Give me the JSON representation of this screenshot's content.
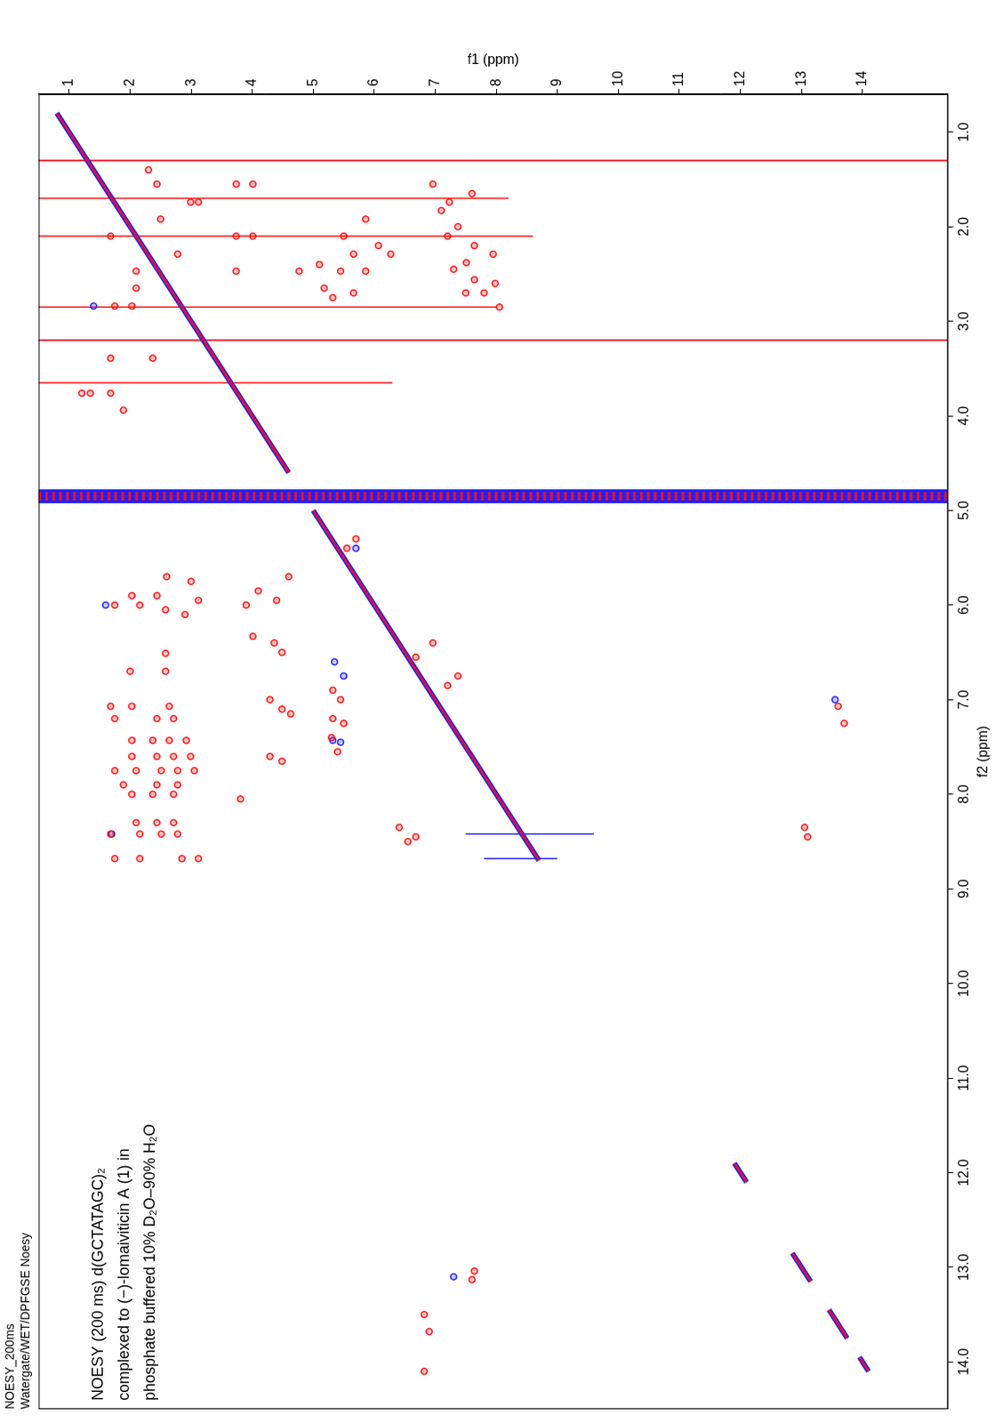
{
  "chart_data": {
    "type": "scatter",
    "title": "NOESY_200ms",
    "subtitle": "Watergate/WET/DPFGSE Noesy",
    "annotations": [
      "NOESY (200 ms) d(GCTATAGC)₂",
      "complexed to (−)-lomaiviticin A (1) in",
      "phosphate buffered 10% D₂O–90% H₂O"
    ],
    "x_label": "f2 (ppm)",
    "y_label": "f1 (ppm)",
    "xlim": [
      14.5,
      0.6
    ],
    "xticks": [
      {
        "value": 14,
        "label": "14.0"
      },
      {
        "value": 13,
        "label": "13.0"
      },
      {
        "value": 12,
        "label": "12.0"
      },
      {
        "value": 11,
        "label": "11.0"
      },
      {
        "value": 10,
        "label": "10.0"
      },
      {
        "value": 9,
        "label": "9.0"
      },
      {
        "value": 8,
        "label": "8.0"
      },
      {
        "value": 7,
        "label": "7.0"
      },
      {
        "value": 6,
        "label": "6.0"
      },
      {
        "value": 5,
        "label": "5.0"
      },
      {
        "value": 4,
        "label": "4.0"
      },
      {
        "value": 3,
        "label": "3.0"
      },
      {
        "value": 2,
        "label": "2.0"
      },
      {
        "value": 1,
        "label": "1.0"
      }
    ],
    "ylim": [
      15.4,
      0.5
    ],
    "yticks": [
      1,
      2,
      3,
      4,
      5,
      6,
      7,
      8,
      9,
      10,
      11,
      12,
      13,
      14
    ],
    "grid": false,
    "series": [
      {
        "type": "line",
        "line_style": "band",
        "color": "#2020ff",
        "x": [
          4.85,
          4.85
        ],
        "y": [
          0.5,
          15.4
        ]
      },
      {
        "type": "line",
        "line_style": "dashed",
        "color": "#ff1010",
        "x": [
          4.85,
          4.85
        ],
        "y": [
          0.5,
          15.4
        ]
      },
      {
        "type": "line",
        "line_style": "thin",
        "color": "#2020ff",
        "x": [
          1.3,
          1.3,
          null,
          3.2,
          3.2,
          null,
          8.42,
          8.42,
          null,
          8.68,
          8.68
        ],
        "y": [
          0.5,
          15.4,
          null,
          0.5,
          15.4,
          null,
          7.5,
          9.6,
          null,
          7.8,
          9.0
        ]
      },
      {
        "type": "line",
        "line_style": "thin",
        "color": "#ff1010",
        "x": [
          1.3,
          1.3,
          null,
          3.2,
          3.2,
          null,
          1.7,
          1.7,
          null,
          2.1,
          2.1,
          null,
          2.85,
          2.85,
          null,
          3.65,
          3.65
        ],
        "y": [
          0.5,
          15.4,
          null,
          0.5,
          15.4,
          null,
          0.5,
          8.2,
          null,
          0.5,
          8.6,
          null,
          0.5,
          8.0,
          null,
          0.5,
          6.3
        ]
      },
      {
        "type": "line",
        "line_style": "thick",
        "color": "#2020ff",
        "x": [
          0.8,
          4.6,
          null,
          5.0,
          8.7,
          null,
          11.9,
          12.1,
          null,
          12.85,
          13.15,
          null,
          13.45,
          13.75,
          null,
          13.95,
          14.1
        ],
        "y": [
          0.8,
          4.6,
          null,
          5.0,
          8.7,
          null,
          11.9,
          12.1,
          null,
          12.85,
          13.15,
          null,
          13.45,
          13.75,
          null,
          13.95,
          14.1
        ]
      },
      {
        "type": "line",
        "line_style": "solid",
        "color": "#ff1010",
        "x": [
          0.8,
          4.6,
          null,
          5.0,
          8.7,
          null,
          11.9,
          12.1,
          null,
          12.85,
          13.15,
          null,
          13.45,
          13.75,
          null,
          13.95,
          14.1
        ],
        "y": [
          0.8,
          4.6,
          null,
          5.0,
          8.7,
          null,
          11.9,
          12.1,
          null,
          12.85,
          13.15,
          null,
          13.45,
          13.75,
          null,
          13.95,
          14.1
        ]
      },
      {
        "type": "scatter",
        "marker": "circle",
        "color": "#2020ff",
        "x": [
          7.43,
          7.45,
          6.0,
          8.42,
          5.4,
          2.84,
          13.1,
          7.0,
          6.6,
          6.75
        ],
        "y": [
          5.32,
          5.45,
          1.6,
          1.7,
          5.7,
          1.4,
          7.3,
          13.55,
          5.35,
          5.5
        ]
      },
      {
        "type": "scatter",
        "marker": "circle",
        "color": "#ff1010",
        "x": [
          6.51,
          6.7,
          6.7,
          7.07,
          7.07,
          7.07,
          7.2,
          7.2,
          7.2,
          7.43,
          7.43,
          7.43,
          7.43,
          7.6,
          7.6,
          7.6,
          7.6,
          7.75,
          7.75,
          7.75,
          7.75,
          7.75,
          7.9,
          7.9,
          7.9,
          8.0,
          8.0,
          8.0,
          8.3,
          8.3,
          8.3,
          8.42,
          8.42,
          8.42,
          8.42,
          8.68,
          8.68,
          8.68,
          8.68,
          6.33,
          6.4,
          6.5,
          7.0,
          7.1,
          7.15,
          7.6,
          7.65,
          8.05,
          6.9,
          7.0,
          7.2,
          7.25,
          7.4,
          7.55,
          6.4,
          6.55,
          6.75,
          6.85,
          8.35,
          8.5,
          8.45,
          13.5,
          13.68,
          14.1,
          13.04,
          13.13,
          7.07,
          7.25,
          8.35,
          8.45,
          1.55,
          1.55,
          1.55,
          1.4,
          1.74,
          1.74,
          2.1,
          2.1,
          2.1,
          2.29,
          2.47,
          2.47,
          2.84,
          2.84,
          3.39,
          3.39,
          3.76,
          3.76,
          3.76,
          3.94,
          1.92,
          2.65,
          1.92,
          2.2,
          2.29,
          2.47,
          2.65,
          2.7,
          2.47,
          2.29,
          2.47,
          2.75,
          2.1,
          2.4,
          1.55,
          1.74,
          1.83,
          2.0,
          2.2,
          2.29,
          2.38,
          2.56,
          2.6,
          2.7,
          2.85,
          2.1,
          1.65,
          2.45,
          2.7,
          5.9,
          5.9,
          6.0,
          6.0,
          6.05,
          6.1,
          5.7,
          5.75,
          5.95,
          5.85,
          6.0,
          5.95,
          5.7,
          5.3,
          5.4
        ],
        "y": [
          2.58,
          2.0,
          2.58,
          1.68,
          2.03,
          2.64,
          1.75,
          2.44,
          2.71,
          2.03,
          2.37,
          2.64,
          2.92,
          2.03,
          2.44,
          2.71,
          2.99,
          1.75,
          2.1,
          2.51,
          2.78,
          3.05,
          1.89,
          2.44,
          2.78,
          2.03,
          2.37,
          2.71,
          2.1,
          2.44,
          2.71,
          1.68,
          2.16,
          2.51,
          2.78,
          1.75,
          2.16,
          2.85,
          3.12,
          4.01,
          4.36,
          4.49,
          4.29,
          4.49,
          4.63,
          4.29,
          4.49,
          3.81,
          5.32,
          5.45,
          5.32,
          5.5,
          5.3,
          5.4,
          6.96,
          6.68,
          7.37,
          7.2,
          6.41,
          6.55,
          6.68,
          6.82,
          6.9,
          6.82,
          7.64,
          7.6,
          13.6,
          13.7,
          13.05,
          13.1,
          2.44,
          3.74,
          4.01,
          2.3,
          2.99,
          3.12,
          1.68,
          3.74,
          4.01,
          2.78,
          2.1,
          3.74,
          1.75,
          2.03,
          1.68,
          2.37,
          1.21,
          1.35,
          1.68,
          1.89,
          2.5,
          2.1,
          5.86,
          6.07,
          5.66,
          5.45,
          5.18,
          5.66,
          5.86,
          6.27,
          4.77,
          5.32,
          5.5,
          5.1,
          6.96,
          7.23,
          7.1,
          7.37,
          7.64,
          7.95,
          7.51,
          7.64,
          7.98,
          7.8,
          8.05,
          7.2,
          7.6,
          7.3,
          7.5,
          2.03,
          2.44,
          1.75,
          2.16,
          2.58,
          2.9,
          2.6,
          3.0,
          3.12,
          4.1,
          3.9,
          4.4,
          4.6,
          5.7,
          5.55
        ]
      }
    ]
  }
}
